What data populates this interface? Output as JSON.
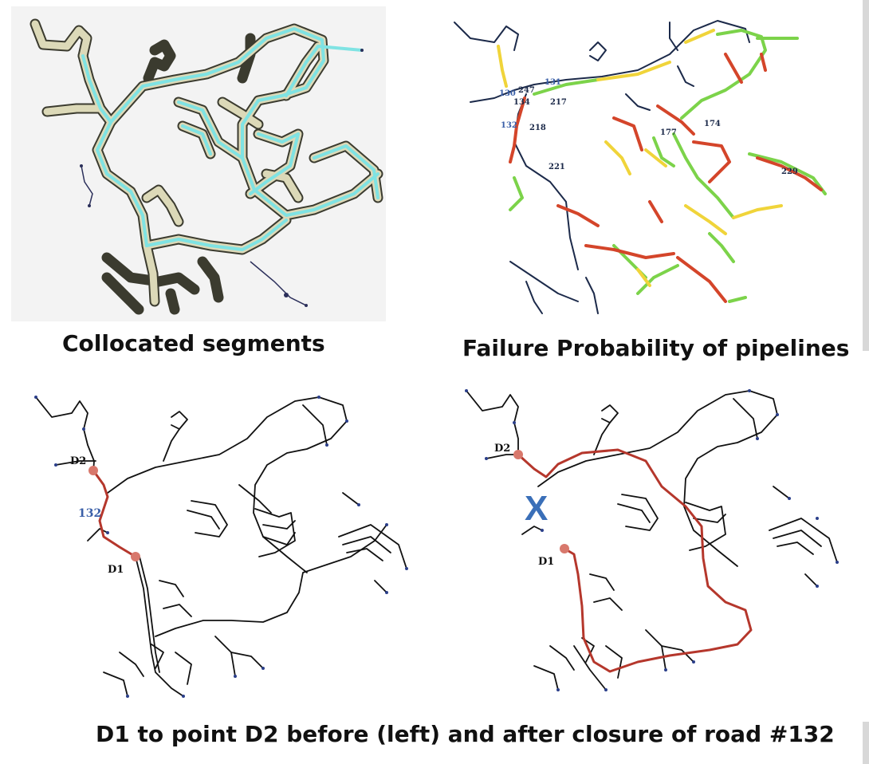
{
  "captions": {
    "top_left": "Collocated segments",
    "top_right": "Failure Probability of pipelines",
    "bottom": "D1 to point D2 before (left) and after closure of road #132"
  },
  "top_right_labels": {
    "l247": "247",
    "l131": "131",
    "l130": "130",
    "l134": "134",
    "l217": "217",
    "l132": "132",
    "l218": "218",
    "l221": "221",
    "l177": "177",
    "l174": "174",
    "l229": "229"
  },
  "bottom_left_labels": {
    "d2": "D2",
    "road": "132",
    "d1": "D1"
  },
  "bottom_right_labels": {
    "d2": "D2",
    "d1": "D1",
    "closed": "X"
  },
  "colors": {
    "network": "#1c2a4a",
    "highlight_route": "#b5372c",
    "collocated_fill": "#7fe3e3",
    "collocated_outline": "#e6e6c8",
    "failure_high": "#d4452a",
    "failure_medium": "#f0d43a",
    "failure_low": "#7cd34a",
    "label_blue": "#3a5fa8",
    "closure_mark": "#3a6fb8"
  }
}
